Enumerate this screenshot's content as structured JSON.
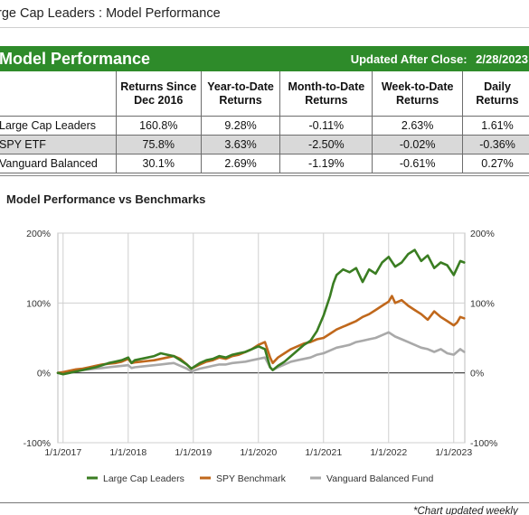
{
  "page": {
    "title": "rge Cap Leaders : Model Performance"
  },
  "table": {
    "banner_title": "Model Performance",
    "updated_label": "Updated After Close:",
    "updated_date": "2/28/2023",
    "headers": [
      "Returns Since Dec 2016",
      "Year-to-Date Returns",
      "Month-to-Date Returns",
      "Week-to-Date Returns",
      "Daily Returns"
    ],
    "rows": [
      {
        "name": "Large Cap Leaders",
        "values": [
          "160.8%",
          "9.28%",
          "-0.11%",
          "2.63%",
          "1.61%"
        ]
      },
      {
        "name": "SPY ETF",
        "values": [
          "75.8%",
          "3.63%",
          "-2.50%",
          "-0.02%",
          "-0.36%"
        ]
      },
      {
        "name": "Vanguard Balanced",
        "values": [
          "30.1%",
          "2.69%",
          "-1.19%",
          "-0.61%",
          "0.27%"
        ]
      }
    ]
  },
  "chart_title": "Model Performance vs Benchmarks",
  "footnote": "*Chart updated weekly",
  "chart_data": {
    "type": "line",
    "title": "",
    "xlabel": "",
    "ylabel": "",
    "x_ticks": [
      "1/1/2017",
      "1/1/2018",
      "1/1/2019",
      "1/1/2020",
      "1/1/2021",
      "1/1/2022",
      "1/1/2023"
    ],
    "y_ticks_left": [
      "200%",
      "100%",
      "0%",
      "-100%"
    ],
    "y_ticks_right": [
      "200%",
      "100%",
      "0%",
      "-100%"
    ],
    "ylim": [
      -100,
      200
    ],
    "xlim": [
      2016.92,
      2023.17
    ],
    "grid": true,
    "legend_position": "bottom",
    "series": [
      {
        "name": "Large Cap Leaders",
        "color": "#3a7d22",
        "x": [
          2016.92,
          2017.0,
          2017.1,
          2017.2,
          2017.3,
          2017.4,
          2017.5,
          2017.6,
          2017.7,
          2017.8,
          2017.9,
          2018.0,
          2018.05,
          2018.1,
          2018.2,
          2018.3,
          2018.4,
          2018.5,
          2018.6,
          2018.7,
          2018.8,
          2018.9,
          2018.97,
          2019.1,
          2019.2,
          2019.3,
          2019.4,
          2019.5,
          2019.6,
          2019.7,
          2019.8,
          2019.9,
          2020.0,
          2020.1,
          2020.18,
          2020.22,
          2020.3,
          2020.4,
          2020.5,
          2020.6,
          2020.7,
          2020.8,
          2020.9,
          2021.0,
          2021.1,
          2021.15,
          2021.2,
          2021.3,
          2021.4,
          2021.5,
          2021.6,
          2021.7,
          2021.8,
          2021.9,
          2022.0,
          2022.1,
          2022.2,
          2022.3,
          2022.4,
          2022.5,
          2022.6,
          2022.7,
          2022.8,
          2022.9,
          2023.0,
          2023.05,
          2023.1,
          2023.16
        ],
        "y": [
          0,
          -2,
          0,
          2,
          4,
          6,
          8,
          11,
          14,
          16,
          18,
          22,
          14,
          18,
          20,
          22,
          24,
          28,
          26,
          24,
          18,
          12,
          6,
          14,
          18,
          20,
          24,
          22,
          26,
          28,
          30,
          34,
          38,
          34,
          8,
          4,
          10,
          16,
          24,
          32,
          40,
          46,
          60,
          82,
          110,
          128,
          140,
          148,
          144,
          150,
          130,
          148,
          142,
          158,
          166,
          152,
          158,
          170,
          176,
          160,
          168,
          150,
          158,
          154,
          140,
          150,
          160,
          158
        ]
      },
      {
        "name": "SPY Benchmark",
        "color": "#c0681c",
        "x": [
          2016.92,
          2017.0,
          2017.1,
          2017.2,
          2017.3,
          2017.4,
          2017.5,
          2017.6,
          2017.7,
          2017.8,
          2017.9,
          2018.0,
          2018.05,
          2018.1,
          2018.2,
          2018.3,
          2018.4,
          2018.5,
          2018.6,
          2018.7,
          2018.8,
          2018.9,
          2018.97,
          2019.1,
          2019.2,
          2019.3,
          2019.4,
          2019.5,
          2019.6,
          2019.7,
          2019.8,
          2019.9,
          2020.0,
          2020.1,
          2020.18,
          2020.22,
          2020.3,
          2020.4,
          2020.5,
          2020.6,
          2020.7,
          2020.8,
          2020.9,
          2021.0,
          2021.1,
          2021.2,
          2021.3,
          2021.4,
          2021.5,
          2021.6,
          2021.7,
          2021.8,
          2021.9,
          2022.0,
          2022.05,
          2022.1,
          2022.2,
          2022.3,
          2022.4,
          2022.5,
          2022.6,
          2022.7,
          2022.8,
          2022.9,
          2023.0,
          2023.05,
          2023.1,
          2023.16
        ],
        "y": [
          0,
          1,
          3,
          5,
          6,
          8,
          10,
          12,
          13,
          14,
          16,
          20,
          14,
          15,
          16,
          17,
          18,
          20,
          22,
          24,
          20,
          12,
          6,
          12,
          16,
          18,
          22,
          20,
          24,
          26,
          30,
          34,
          40,
          44,
          22,
          14,
          22,
          28,
          34,
          38,
          42,
          44,
          48,
          50,
          56,
          62,
          66,
          70,
          74,
          80,
          84,
          90,
          96,
          102,
          110,
          100,
          104,
          96,
          90,
          84,
          76,
          88,
          80,
          74,
          68,
          72,
          80,
          78
        ]
      },
      {
        "name": "Vanguard Balanced Fund",
        "color": "#a9a9a9",
        "x": [
          2016.92,
          2017.0,
          2017.1,
          2017.2,
          2017.3,
          2017.4,
          2017.5,
          2017.6,
          2017.7,
          2017.8,
          2017.9,
          2018.0,
          2018.05,
          2018.1,
          2018.2,
          2018.3,
          2018.4,
          2018.5,
          2018.6,
          2018.7,
          2018.8,
          2018.9,
          2018.97,
          2019.1,
          2019.2,
          2019.3,
          2019.4,
          2019.5,
          2019.6,
          2019.7,
          2019.8,
          2019.9,
          2020.0,
          2020.1,
          2020.18,
          2020.22,
          2020.3,
          2020.4,
          2020.5,
          2020.6,
          2020.7,
          2020.8,
          2020.9,
          2021.0,
          2021.1,
          2021.2,
          2021.3,
          2021.4,
          2021.5,
          2021.6,
          2021.7,
          2021.8,
          2021.9,
          2022.0,
          2022.1,
          2022.2,
          2022.3,
          2022.4,
          2022.5,
          2022.6,
          2022.7,
          2022.8,
          2022.9,
          2023.0,
          2023.05,
          2023.1,
          2023.16
        ],
        "y": [
          0,
          1,
          2,
          3,
          4,
          5,
          6,
          7,
          8,
          9,
          10,
          11,
          7,
          8,
          9,
          10,
          11,
          12,
          13,
          14,
          10,
          6,
          2,
          6,
          8,
          10,
          12,
          12,
          14,
          15,
          16,
          18,
          20,
          22,
          8,
          4,
          8,
          12,
          16,
          18,
          20,
          22,
          26,
          28,
          32,
          36,
          38,
          40,
          44,
          46,
          48,
          50,
          54,
          58,
          52,
          48,
          44,
          40,
          36,
          34,
          30,
          34,
          28,
          26,
          30,
          34,
          30
        ]
      }
    ]
  }
}
